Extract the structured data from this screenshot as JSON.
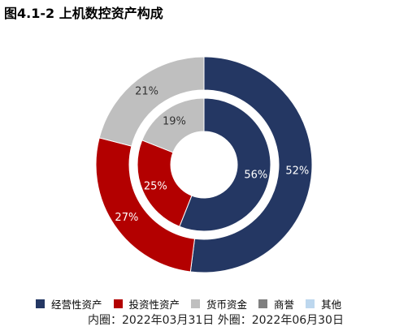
{
  "chart_data": {
    "type": "donut",
    "title": "图4.1-2 上机数控资产构成",
    "note": "内圈：2022年03月31日 外圈：2022年06月30日",
    "categories": [
      "经营性资产",
      "投资性资产",
      "货币资金",
      "商誉",
      "其他"
    ],
    "colors": [
      "#243763",
      "#B30000",
      "#BFBFBF",
      "#7F7F7F",
      "#BDD7EE"
    ],
    "series": [
      {
        "name": "内圈：2022年03月31日",
        "ring": "inner",
        "values": [
          56,
          25,
          19,
          0,
          0
        ],
        "labels": [
          "56%",
          "25%",
          "19%",
          "",
          ""
        ]
      },
      {
        "name": "外圈：2022年06月30日",
        "ring": "outer",
        "values": [
          52,
          27,
          21,
          0,
          0
        ],
        "labels": [
          "52%",
          "27%",
          "21%",
          "",
          ""
        ]
      }
    ],
    "legend_position": "bottom"
  }
}
